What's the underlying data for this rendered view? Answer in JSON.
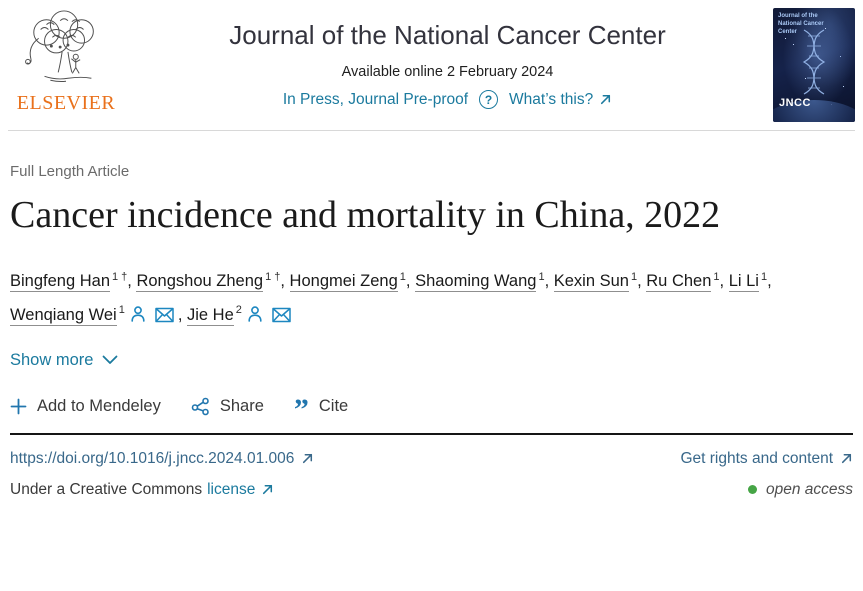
{
  "header": {
    "publisher": "ELSEVIER",
    "journal_title": "Journal of the National Cancer Center",
    "available_online": "Available online 2 February 2024",
    "in_press": "In Press, Journal Pre-proof",
    "help_glyph": "?",
    "whats_this": "What’s this?",
    "cover": {
      "title": "Journal of the National Cancer Center",
      "abbrev": "JNCC"
    }
  },
  "article": {
    "type_label": "Full Length Article",
    "title": "Cancer incidence and mortality in China, 2022",
    "authors": [
      {
        "name": "Bingfeng Han",
        "sup": "1 †",
        "person": false,
        "mail": false
      },
      {
        "name": "Rongshou Zheng",
        "sup": "1 †",
        "person": false,
        "mail": false
      },
      {
        "name": "Hongmei Zeng",
        "sup": "1",
        "person": false,
        "mail": false
      },
      {
        "name": "Shaoming Wang",
        "sup": "1",
        "person": false,
        "mail": false
      },
      {
        "name": "Kexin Sun",
        "sup": "1",
        "person": false,
        "mail": false
      },
      {
        "name": "Ru Chen",
        "sup": "1",
        "person": false,
        "mail": false
      },
      {
        "name": "Li Li",
        "sup": "1",
        "person": false,
        "mail": false
      },
      {
        "name": "Wenqiang Wei",
        "sup": "1",
        "person": true,
        "mail": true
      },
      {
        "name": "Jie He",
        "sup": "2",
        "person": true,
        "mail": true
      }
    ],
    "show_more": "Show more"
  },
  "toolbar": {
    "mendeley_label": "Add to Mendeley",
    "share_label": "Share",
    "cite_label": "Cite",
    "cite_icon_glyph": "”"
  },
  "footer": {
    "doi": "https://doi.org/10.1016/j.jncc.2024.01.006",
    "rights": "Get rights and content",
    "license_prefix": "Under a Creative Commons",
    "license_link": "license",
    "open_access": "open access"
  },
  "colors": {
    "accent_teal": "#1b7a9e",
    "icon_blue": "#2176ae",
    "author_icon_blue": "#1d87c0",
    "elsevier_orange": "#e9711c",
    "open_access_green": "#46a546",
    "link_steel": "#39688a"
  }
}
